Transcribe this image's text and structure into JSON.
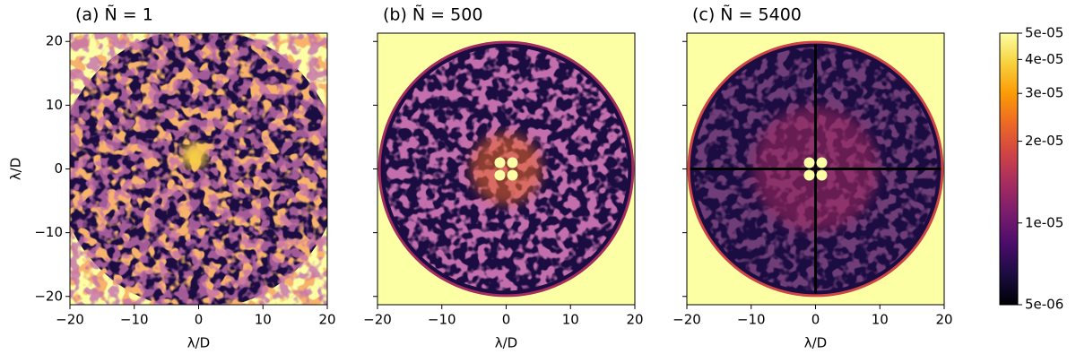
{
  "chart_data": [
    {
      "type": "heatmap",
      "title": "(a) Ñ = 1",
      "xlabel": "λ/D",
      "ylabel": "λ/D",
      "xlim": [
        -20,
        20
      ],
      "ylim": [
        -21.3,
        21.3
      ],
      "xticks": [
        {
          "value": -20,
          "label": "−20"
        },
        {
          "value": -10,
          "label": "−10"
        },
        0,
        10,
        20
      ],
      "yticks": [
        {
          "value": -20,
          "label": "−20"
        },
        {
          "value": -10,
          "label": "−10"
        },
        0,
        10,
        20
      ],
      "show_ytick_labels": true
    },
    {
      "type": "heatmap",
      "title": "(b) Ñ = 500",
      "xlabel": "λ/D",
      "xlim": [
        -20,
        20
      ],
      "ylim": [
        -21.3,
        21.3
      ],
      "xticks": [
        {
          "value": -20,
          "label": "−20"
        },
        {
          "value": -10,
          "label": "−10"
        },
        0,
        10,
        20
      ],
      "yticks": [
        -20,
        -10,
        0,
        10,
        20
      ],
      "show_ytick_labels": false
    },
    {
      "type": "heatmap",
      "title": "(c) Ñ = 5400",
      "xlabel": "λ/D",
      "xlim": [
        -20,
        20
      ],
      "ylim": [
        -21.3,
        21.3
      ],
      "xticks": [
        {
          "value": -20,
          "label": "−20"
        },
        {
          "value": -10,
          "label": "−10"
        },
        0,
        10,
        20
      ],
      "yticks": [
        -20,
        -10,
        0,
        10,
        20
      ],
      "show_ytick_labels": false
    },
    {
      "type": "colorbar",
      "log_scale": true,
      "lim": [
        5e-06,
        5e-05
      ],
      "ticks": [
        {
          "value": 5e-05,
          "label": "5e-05"
        },
        {
          "value": 4e-05,
          "label": "4e-05"
        },
        {
          "value": 3e-05,
          "label": "3e-05"
        },
        {
          "value": 2e-05,
          "label": "2e-05"
        },
        {
          "value": 1e-05,
          "label": "1e-05"
        },
        {
          "value": 5e-06,
          "label": "5e-06"
        }
      ],
      "colors": [
        "#000004",
        "#1b0c41",
        "#4a0c6b",
        "#781c6d",
        "#a52c60",
        "#cf4446",
        "#ed6925",
        "#fb9b06",
        "#f7d13d",
        "#fcffa4"
      ]
    }
  ]
}
